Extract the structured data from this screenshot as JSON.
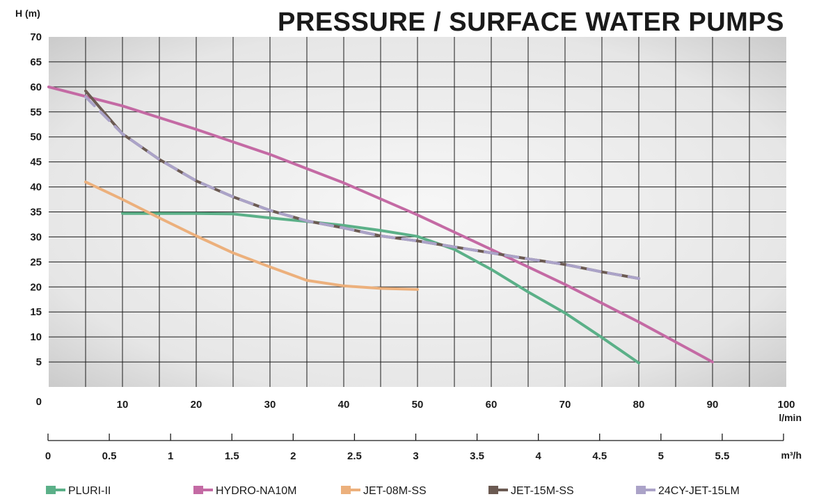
{
  "chart_data": {
    "type": "line",
    "title": "PRESSURE / SURFACE WATER PUMPS",
    "ylabel": "H (m)",
    "xlabel": "l/min",
    "x2label": "m³/h",
    "xlim": [
      0,
      100
    ],
    "ylim": [
      0,
      70
    ],
    "x_ticks": [
      0,
      10,
      20,
      30,
      40,
      50,
      60,
      70,
      80,
      90,
      100
    ],
    "x_ticks_display": [
      "0",
      "10",
      "20",
      "30",
      "40",
      "50",
      "60",
      "70",
      "80",
      "90",
      "100"
    ],
    "y_ticks": [
      0,
      5,
      10,
      15,
      20,
      25,
      30,
      35,
      40,
      45,
      50,
      55,
      60,
      65,
      70
    ],
    "y_ticks_display": [
      "0",
      "5",
      "10",
      "15",
      "20",
      "25",
      "30",
      "35",
      "40",
      "45",
      "50",
      "55",
      "60",
      "65",
      "70"
    ],
    "x2_ticks": [
      0,
      0.5,
      1,
      1.5,
      2,
      2.5,
      3,
      3.5,
      4,
      4.5,
      5,
      5.5,
      6
    ],
    "x2_ticks_display": [
      "0",
      "0.5",
      "1",
      "1.5",
      "2",
      "2.5",
      "3",
      "3.5",
      "4",
      "4.5",
      "5",
      "5.5",
      ""
    ],
    "grid": true,
    "legend_position": "bottom",
    "series": [
      {
        "name": "PLURI-II",
        "color": "#5bb088",
        "dashed": false,
        "x": [
          10,
          15,
          20,
          25,
          30,
          35,
          40,
          45,
          50,
          55,
          60,
          65,
          70,
          75,
          80
        ],
        "y": [
          34.7,
          34.7,
          34.7,
          34.6,
          33.8,
          33.1,
          32.3,
          31.3,
          30.1,
          27.5,
          23.5,
          19,
          14.8,
          9.9,
          4.8
        ]
      },
      {
        "name": "HYDRO-NA10M",
        "color": "#c46aa4",
        "dashed": false,
        "x": [
          0,
          10,
          20,
          30,
          40,
          50,
          60,
          70,
          80,
          90
        ],
        "y": [
          60,
          56.2,
          51.5,
          46.5,
          40.8,
          34.4,
          27.5,
          20.5,
          13,
          5
        ]
      },
      {
        "name": "JET-08M-SS",
        "color": "#ecb07c",
        "dashed": false,
        "x": [
          5,
          10,
          15,
          20,
          25,
          30,
          35,
          40,
          45,
          50
        ],
        "y": [
          41,
          37.5,
          33.8,
          30.2,
          26.8,
          24,
          21.3,
          20.2,
          19.7,
          19.5
        ]
      },
      {
        "name": "JET-15M-SS",
        "color": "#6b5a52",
        "dashed": false,
        "x": [
          5,
          10,
          15,
          20,
          25,
          30,
          35,
          40,
          45,
          50,
          55,
          60,
          65,
          70,
          75,
          80
        ],
        "y": [
          59.2,
          50.6,
          45.5,
          41.2,
          38,
          35.3,
          33.2,
          31.8,
          30.2,
          29.2,
          28,
          26.8,
          25.6,
          24.5,
          23,
          21.7
        ]
      },
      {
        "name": "24CY-JET-15LM",
        "color": "#aba3c8",
        "dashed": true,
        "x": [
          5,
          10,
          15,
          20,
          25,
          30,
          35,
          40,
          45,
          50,
          55,
          60,
          65,
          70,
          75,
          80
        ],
        "y": [
          58,
          50.6,
          45.5,
          41.2,
          38,
          35.3,
          33.2,
          31.8,
          30.2,
          29.2,
          28,
          26.8,
          25.6,
          24.5,
          23,
          21.7
        ]
      }
    ]
  },
  "colors": {
    "title": "#1a1a1a",
    "grid": "#1a1a1a",
    "plot_bg_edge": "#c9c9c9",
    "plot_bg_center": "#f4f4f4"
  }
}
